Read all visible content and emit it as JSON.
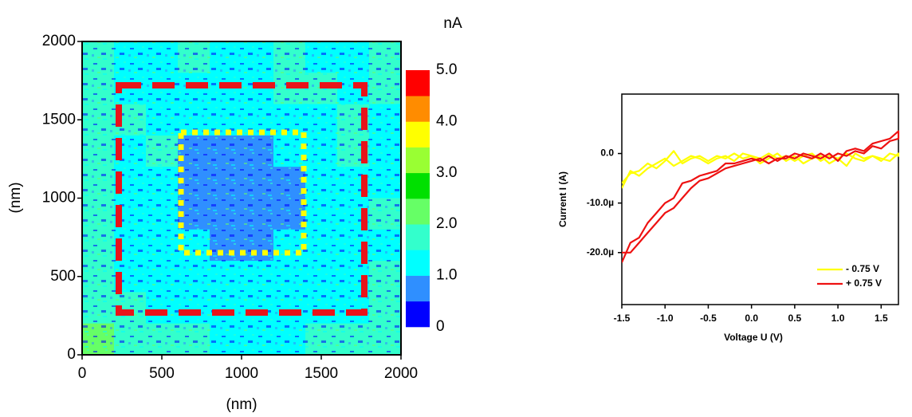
{
  "chart_data": [
    {
      "type": "heatmap",
      "xlabel": "(nm)",
      "ylabel": "(nm)",
      "xlim": [
        0,
        2000
      ],
      "ylim": [
        0,
        2000
      ],
      "xticks": [
        0,
        500,
        1000,
        1500,
        2000
      ],
      "yticks": [
        0,
        500,
        1000,
        1500,
        2000
      ],
      "z": [
        [
          1.6,
          1.4,
          1.3,
          1.8,
          1.2,
          1.3,
          1.5,
          1.2,
          1.3,
          1.7
        ],
        [
          1.8,
          1.3,
          1.2,
          1.0,
          1.4,
          1.3,
          1.6,
          1.8,
          1.4,
          1.5
        ],
        [
          1.7,
          1.5,
          1.4,
          1.2,
          1.3,
          1.1,
          1.2,
          1.3,
          1.7,
          1.4
        ],
        [
          1.9,
          1.2,
          1.6,
          0.9,
          0.8,
          0.9,
          1.1,
          1.2,
          1.6,
          1.3
        ],
        [
          1.6,
          1.3,
          1.2,
          0.7,
          0.6,
          0.7,
          0.9,
          1.3,
          1.2,
          1.4
        ],
        [
          1.8,
          1.4,
          1.1,
          0.8,
          0.6,
          0.7,
          0.8,
          1.2,
          1.3,
          1.5
        ],
        [
          1.7,
          1.2,
          1.3,
          1.0,
          0.8,
          0.9,
          1.1,
          1.2,
          1.1,
          1.3
        ],
        [
          1.9,
          1.3,
          1.2,
          1.2,
          1.0,
          1.1,
          1.0,
          1.3,
          1.2,
          1.6
        ],
        [
          1.8,
          1.6,
          1.1,
          1.3,
          1.4,
          1.2,
          1.3,
          1.1,
          1.4,
          1.5
        ],
        [
          2.0,
          1.7,
          1.5,
          1.6,
          1.3,
          1.4,
          1.2,
          1.5,
          1.6,
          1.8
        ]
      ],
      "colorbar": {
        "label": "nA",
        "levels": [
          0,
          0.5,
          1,
          1.5,
          2,
          2.5,
          3,
          3.5,
          4,
          4.5,
          5
        ],
        "colors": [
          "#0000ff",
          "#2f8fff",
          "#00ffff",
          "#33ffcc",
          "#66ff66",
          "#00e000",
          "#99ff33",
          "#ffff00",
          "#ff8c00",
          "#ff0000"
        ],
        "ticks": [
          0,
          {
            "value": 1,
            "label": "1.0"
          },
          {
            "value": 2,
            "label": "2.0"
          },
          {
            "value": 3,
            "label": "3.0"
          },
          {
            "value": 4,
            "label": "4.0"
          },
          {
            "value": 5,
            "label": "5.0"
          }
        ]
      }
    },
    {
      "type": "line",
      "xlabel": "Voltage U (V)",
      "ylabel": "Current I (A)",
      "xlim": [
        -1.5,
        1.7
      ],
      "ylim": [
        -3.05e-05,
        1.2e-05
      ],
      "xticks": [
        {
          "value": -1.5,
          "label": "-1.5"
        },
        {
          "value": -1,
          "label": "-1.0"
        },
        {
          "value": -0.5,
          "label": "-0.5"
        },
        {
          "value": 0,
          "label": "0.0"
        },
        {
          "value": 0.5,
          "label": "0.5"
        },
        {
          "value": 1,
          "label": "1.0"
        },
        {
          "value": 1.5,
          "label": "1.5"
        }
      ],
      "yticks": [
        {
          "value": 0,
          "label": "0.0"
        },
        {
          "value": -1e-05,
          "label": "-10.0µ"
        },
        {
          "value": -2e-05,
          "label": "-20.0µ"
        }
      ],
      "legend": "lower right",
      "x": [
        -1.5,
        -1.4,
        -1.3,
        -1.2,
        -1.1,
        -1.0,
        -0.9,
        -0.8,
        -0.7,
        -0.6,
        -0.5,
        -0.4,
        -0.3,
        -0.2,
        -0.1,
        0,
        0.1,
        0.2,
        0.3,
        0.4,
        0.5,
        0.6,
        0.7,
        0.8,
        0.9,
        1.0,
        1.1,
        1.2,
        1.3,
        1.4,
        1.5,
        1.6,
        1.7,
        1.7,
        1.6,
        1.5,
        1.4,
        1.3,
        1.2,
        1.1,
        1.0,
        0.9,
        0.8,
        0.7,
        0.6,
        0.5,
        0.4,
        0.3,
        0.2,
        0.1,
        0,
        -0.1,
        -0.2,
        -0.3,
        -0.4,
        -0.5,
        -0.6,
        -0.7,
        -0.8,
        -0.9,
        -1.0,
        -1.1,
        -1.2,
        -1.3,
        -1.4,
        -1.5
      ],
      "series": [
        {
          "name": "- 0.75 V",
          "color": "#ffff00",
          "values": [
            -6e-06,
            -4e-06,
            -3.5e-06,
            -2e-06,
            -3e-06,
            -1.5e-06,
            5e-07,
            -2e-06,
            -1e-06,
            -5e-07,
            -1.5e-06,
            -5e-07,
            -1e-06,
            0,
            -1e-06,
            -5e-07,
            -1e-06,
            0,
            -1e-06,
            -5e-07,
            -1.5e-06,
            -5e-07,
            0,
            -1.5e-06,
            -5e-07,
            -1e-06,
            -2.5e-06,
            0,
            -1e-06,
            -5e-07,
            -1e-06,
            -1.5e-06,
            0,
            -5e-07,
            0,
            -1.5e-06,
            -5e-07,
            -1.5e-06,
            -1e-06,
            0,
            -1e-06,
            -2e-06,
            -5e-07,
            -1e-06,
            -2e-06,
            -5e-07,
            -1.5e-06,
            0,
            -1e-06,
            -2e-06,
            -5e-07,
            0,
            -1.5e-06,
            -5e-07,
            -1e-06,
            -2e-06,
            -1e-06,
            -5e-07,
            -1.5e-06,
            -2.5e-06,
            -1e-06,
            -2e-06,
            -3e-06,
            -4.5e-06,
            -3.5e-06,
            -7e-06
          ]
        },
        {
          "name": "+ 0.75 V",
          "color": "#ee1111",
          "values": [
            -2.2e-05,
            -1.8e-05,
            -1.7e-05,
            -1.4e-05,
            -1.2e-05,
            -1e-05,
            -9e-06,
            -6e-06,
            -5.5e-06,
            -4.5e-06,
            -4e-06,
            -3.5e-06,
            -2e-06,
            -2e-06,
            -1.5e-06,
            -1e-06,
            -1.5e-06,
            -5e-07,
            -1.5e-06,
            -5e-07,
            -1e-06,
            0,
            -5e-07,
            -1e-06,
            0,
            -1.5e-06,
            5e-07,
            1e-06,
            5e-07,
            2e-06,
            2.5e-06,
            3e-06,
            4.5e-06,
            3e-06,
            2.5e-06,
            1e-06,
            1.5e-06,
            0,
            5e-07,
            -5e-07,
            0,
            -1e-06,
            0,
            -1e-06,
            -5e-07,
            0,
            -1e-06,
            -1e-06,
            -2e-06,
            -1e-06,
            -1.5e-06,
            -2e-06,
            -2.5e-06,
            -3e-06,
            -4e-06,
            -5e-06,
            -5.5e-06,
            -7e-06,
            -9e-06,
            -1.1e-05,
            -1.2e-05,
            -1.4e-05,
            -1.6e-05,
            -1.8e-05,
            -2e-05,
            -2e-05
          ]
        }
      ]
    }
  ]
}
